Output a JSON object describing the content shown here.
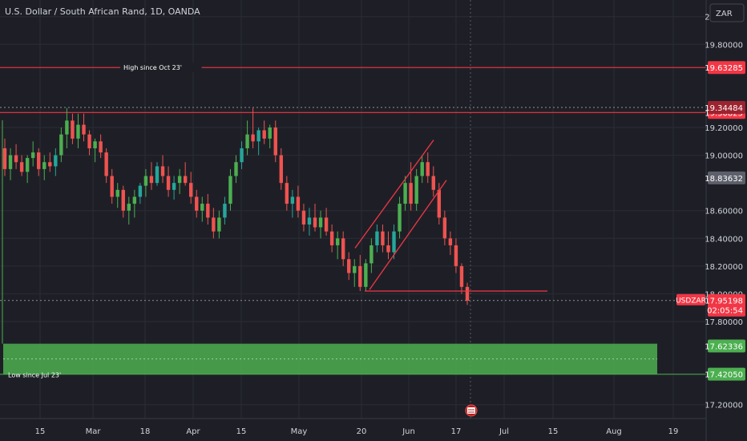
{
  "header": {
    "title": "U.S. Dollar / South African Rand, 1D, OANDA"
  },
  "currency_button": "ZAR",
  "colors": {
    "background": "#1e1f26",
    "grid": "#2a2c35",
    "axis_text": "#d1d4dc",
    "up": "#26a69a",
    "up_alt": "#4caf50",
    "down": "#ef5350",
    "level_line": "#f23645",
    "support_zone": "#4caf50",
    "price_tag": "#f23645",
    "current_price_tag": "#f23645",
    "current_price_grey_tag": "#5d606b"
  },
  "chart_data": {
    "type": "candlestick",
    "symbol": "USDZAR",
    "interval": "1D",
    "ylim": [
      17.1,
      20.12
    ],
    "y_ticks": [
      "20.00000",
      "19.80000",
      "19.20000",
      "19.00000",
      "18.60000",
      "18.40000",
      "18.20000",
      "18.00000",
      "17.80000",
      "17.20000"
    ],
    "x_ticks": [
      "15",
      "Mar",
      "18",
      "Apr",
      "15",
      "May",
      "20",
      "Jun",
      "17",
      "Jul",
      "15",
      "Aug",
      "19"
    ],
    "levels": [
      {
        "value": 19.63285,
        "label": "High since Oct 23'",
        "tag": "19.63285"
      },
      {
        "value": 19.30825,
        "label": "",
        "tag": "19.30825"
      },
      {
        "value": 19.34484,
        "label": "",
        "tag": "19.34484",
        "style": "dotted"
      }
    ],
    "price_tags": [
      {
        "value": 18.83632,
        "tag": "18.83632",
        "style": "grey"
      },
      {
        "value": 17.62336,
        "tag": "17.62336",
        "style": "green"
      },
      {
        "value": 17.4205,
        "tag": "17.42050",
        "style": "green"
      }
    ],
    "current_price": {
      "symbol": "USDZAR",
      "value": "17.95198",
      "countdown": "02:05:54"
    },
    "support_zone": {
      "top": 17.64,
      "bottom": 17.42,
      "label": "Low since Jul 23'"
    },
    "channel": {
      "upper": [
        [
          18.33,
          19.11
        ]
      ],
      "lower": [
        [
          18.03,
          18.82
        ]
      ]
    },
    "horizontal_support": 18.02,
    "candles": [
      {
        "o": 19.05,
        "h": 19.12,
        "l": 18.85,
        "c": 18.9
      },
      {
        "o": 18.9,
        "h": 19.05,
        "l": 18.82,
        "c": 19.0
      },
      {
        "o": 19.0,
        "h": 19.08,
        "l": 18.9,
        "c": 18.95
      },
      {
        "o": 18.95,
        "h": 19.0,
        "l": 18.85,
        "c": 18.88
      },
      {
        "o": 18.88,
        "h": 19.0,
        "l": 18.8,
        "c": 18.98
      },
      {
        "o": 18.98,
        "h": 19.1,
        "l": 18.92,
        "c": 19.02
      },
      {
        "o": 19.02,
        "h": 19.05,
        "l": 18.85,
        "c": 18.9
      },
      {
        "o": 18.9,
        "h": 19.0,
        "l": 18.82,
        "c": 18.95
      },
      {
        "o": 18.95,
        "h": 19.02,
        "l": 18.88,
        "c": 18.92
      },
      {
        "o": 18.92,
        "h": 19.05,
        "l": 18.85,
        "c": 19.0
      },
      {
        "o": 19.0,
        "h": 19.2,
        "l": 18.95,
        "c": 19.15
      },
      {
        "o": 19.15,
        "h": 19.34,
        "l": 19.05,
        "c": 19.25
      },
      {
        "o": 19.25,
        "h": 19.3,
        "l": 19.08,
        "c": 19.12
      },
      {
        "o": 19.12,
        "h": 19.3,
        "l": 19.05,
        "c": 19.22
      },
      {
        "o": 19.22,
        "h": 19.3,
        "l": 19.1,
        "c": 19.15
      },
      {
        "o": 19.15,
        "h": 19.18,
        "l": 19.0,
        "c": 19.05
      },
      {
        "o": 19.05,
        "h": 19.12,
        "l": 18.95,
        "c": 19.1
      },
      {
        "o": 19.1,
        "h": 19.15,
        "l": 18.98,
        "c": 19.02
      },
      {
        "o": 19.02,
        "h": 19.05,
        "l": 18.8,
        "c": 18.85
      },
      {
        "o": 18.85,
        "h": 18.9,
        "l": 18.65,
        "c": 18.7
      },
      {
        "o": 18.7,
        "h": 18.8,
        "l": 18.62,
        "c": 18.75
      },
      {
        "o": 18.75,
        "h": 18.78,
        "l": 18.55,
        "c": 18.6
      },
      {
        "o": 18.6,
        "h": 18.7,
        "l": 18.5,
        "c": 18.65
      },
      {
        "o": 18.65,
        "h": 18.75,
        "l": 18.55,
        "c": 18.7
      },
      {
        "o": 18.7,
        "h": 18.8,
        "l": 18.65,
        "c": 18.78
      },
      {
        "o": 18.78,
        "h": 18.9,
        "l": 18.7,
        "c": 18.85
      },
      {
        "o": 18.85,
        "h": 18.95,
        "l": 18.75,
        "c": 18.8
      },
      {
        "o": 18.8,
        "h": 18.95,
        "l": 18.78,
        "c": 18.92
      },
      {
        "o": 18.92,
        "h": 19.0,
        "l": 18.8,
        "c": 18.85
      },
      {
        "o": 18.85,
        "h": 18.92,
        "l": 18.7,
        "c": 18.75
      },
      {
        "o": 18.75,
        "h": 18.85,
        "l": 18.68,
        "c": 18.8
      },
      {
        "o": 18.8,
        "h": 18.9,
        "l": 18.72,
        "c": 18.85
      },
      {
        "o": 18.85,
        "h": 18.95,
        "l": 18.78,
        "c": 18.8
      },
      {
        "o": 18.8,
        "h": 18.88,
        "l": 18.65,
        "c": 18.7
      },
      {
        "o": 18.7,
        "h": 18.75,
        "l": 18.55,
        "c": 18.6
      },
      {
        "o": 18.6,
        "h": 18.7,
        "l": 18.52,
        "c": 18.65
      },
      {
        "o": 18.65,
        "h": 18.72,
        "l": 18.5,
        "c": 18.55
      },
      {
        "o": 18.55,
        "h": 18.62,
        "l": 18.4,
        "c": 18.45
      },
      {
        "o": 18.45,
        "h": 18.6,
        "l": 18.4,
        "c": 18.55
      },
      {
        "o": 18.55,
        "h": 18.7,
        "l": 18.5,
        "c": 18.65
      },
      {
        "o": 18.65,
        "h": 18.9,
        "l": 18.6,
        "c": 18.85
      },
      {
        "o": 18.85,
        "h": 19.0,
        "l": 18.8,
        "c": 18.95
      },
      {
        "o": 18.95,
        "h": 19.1,
        "l": 18.9,
        "c": 19.05
      },
      {
        "o": 19.05,
        "h": 19.25,
        "l": 19.0,
        "c": 19.15
      },
      {
        "o": 19.15,
        "h": 19.34,
        "l": 19.05,
        "c": 19.1
      },
      {
        "o": 19.1,
        "h": 19.2,
        "l": 19.0,
        "c": 19.18
      },
      {
        "o": 19.18,
        "h": 19.25,
        "l": 19.08,
        "c": 19.12
      },
      {
        "o": 19.12,
        "h": 19.22,
        "l": 19.05,
        "c": 19.2
      },
      {
        "o": 19.2,
        "h": 19.25,
        "l": 18.95,
        "c": 19.0
      },
      {
        "o": 19.0,
        "h": 19.05,
        "l": 18.75,
        "c": 18.8
      },
      {
        "o": 18.8,
        "h": 18.85,
        "l": 18.6,
        "c": 18.65
      },
      {
        "o": 18.65,
        "h": 18.75,
        "l": 18.55,
        "c": 18.7
      },
      {
        "o": 18.7,
        "h": 18.78,
        "l": 18.55,
        "c": 18.6
      },
      {
        "o": 18.6,
        "h": 18.65,
        "l": 18.45,
        "c": 18.5
      },
      {
        "o": 18.5,
        "h": 18.62,
        "l": 18.42,
        "c": 18.55
      },
      {
        "o": 18.55,
        "h": 18.65,
        "l": 18.45,
        "c": 18.48
      },
      {
        "o": 18.48,
        "h": 18.6,
        "l": 18.4,
        "c": 18.55
      },
      {
        "o": 18.55,
        "h": 18.62,
        "l": 18.42,
        "c": 18.45
      },
      {
        "o": 18.45,
        "h": 18.5,
        "l": 18.3,
        "c": 18.35
      },
      {
        "o": 18.35,
        "h": 18.45,
        "l": 18.25,
        "c": 18.4
      },
      {
        "o": 18.4,
        "h": 18.45,
        "l": 18.2,
        "c": 18.25
      },
      {
        "o": 18.25,
        "h": 18.3,
        "l": 18.1,
        "c": 18.15
      },
      {
        "o": 18.15,
        "h": 18.25,
        "l": 18.05,
        "c": 18.2
      },
      {
        "o": 18.2,
        "h": 18.28,
        "l": 18.02,
        "c": 18.05
      },
      {
        "o": 18.05,
        "h": 18.25,
        "l": 18.02,
        "c": 18.22
      },
      {
        "o": 18.22,
        "h": 18.4,
        "l": 18.15,
        "c": 18.35
      },
      {
        "o": 18.35,
        "h": 18.5,
        "l": 18.3,
        "c": 18.45
      },
      {
        "o": 18.45,
        "h": 18.5,
        "l": 18.3,
        "c": 18.35
      },
      {
        "o": 18.35,
        "h": 18.45,
        "l": 18.25,
        "c": 18.3
      },
      {
        "o": 18.3,
        "h": 18.5,
        "l": 18.25,
        "c": 18.45
      },
      {
        "o": 18.45,
        "h": 18.7,
        "l": 18.4,
        "c": 18.65
      },
      {
        "o": 18.65,
        "h": 18.85,
        "l": 18.6,
        "c": 18.8
      },
      {
        "o": 18.8,
        "h": 18.95,
        "l": 18.6,
        "c": 18.65
      },
      {
        "o": 18.65,
        "h": 18.9,
        "l": 18.6,
        "c": 18.85
      },
      {
        "o": 18.85,
        "h": 19.0,
        "l": 18.8,
        "c": 18.95
      },
      {
        "o": 18.95,
        "h": 19.02,
        "l": 18.8,
        "c": 18.85
      },
      {
        "o": 18.85,
        "h": 18.92,
        "l": 18.7,
        "c": 18.75
      },
      {
        "o": 18.75,
        "h": 18.8,
        "l": 18.5,
        "c": 18.55
      },
      {
        "o": 18.55,
        "h": 18.6,
        "l": 18.35,
        "c": 18.4
      },
      {
        "o": 18.4,
        "h": 18.45,
        "l": 18.28,
        "c": 18.35
      },
      {
        "o": 18.35,
        "h": 18.4,
        "l": 18.15,
        "c": 18.2
      },
      {
        "o": 18.2,
        "h": 18.22,
        "l": 18.0,
        "c": 18.05
      },
      {
        "o": 18.05,
        "h": 18.08,
        "l": 17.92,
        "c": 17.95
      }
    ]
  }
}
